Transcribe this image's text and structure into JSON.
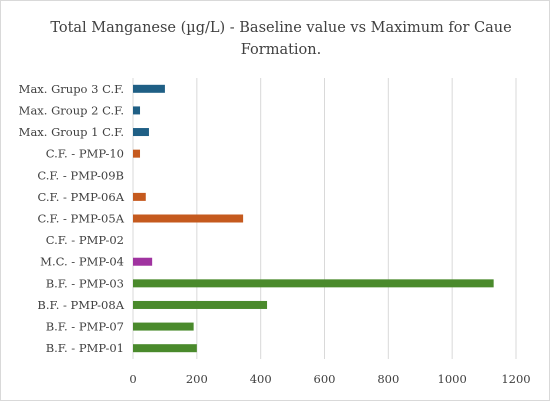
{
  "chart_data": {
    "type": "bar",
    "orientation": "horizontal",
    "title": "Total Manganese (µg/L) - Baseline value vs Maximum for Caue Formation.",
    "title_lines": [
      "Total Manganese (µg/L) - Baseline value vs Maximum for Caue",
      "Formation."
    ],
    "xlabel": "",
    "ylabel": "",
    "xlim": [
      0,
      1200
    ],
    "x_ticks": [
      "0",
      "200",
      "400",
      "600",
      "800",
      "1000",
      "1200"
    ],
    "grid": "vertical",
    "legend": "none",
    "categories": [
      "B.F. - PMP-01",
      "B.F. - PMP-07",
      "B.F. - PMP-08A",
      "B.F. - PMP-03",
      "M.C. - PMP-04",
      "C.F. - PMP-02",
      "C.F. - PMP-05A",
      "C.F. - PMP-06A",
      "C.F. - PMP-09B",
      "C.F. - PMP-10",
      "Max. Group 1 C.F.",
      "Max. Group 2 C.F.",
      "Max. Grupo 3 C.F."
    ],
    "values": [
      200,
      190,
      420,
      1130,
      60,
      0,
      345,
      40,
      0,
      22,
      50,
      22,
      100
    ],
    "colors": [
      "#4a8a2c",
      "#4a8a2c",
      "#4a8a2c",
      "#4a8a2c",
      "#a033a0",
      "#c55a1e",
      "#c55a1e",
      "#c55a1e",
      "#c55a1e",
      "#c55a1e",
      "#1f5f85",
      "#1f5f85",
      "#1f5f85"
    ]
  }
}
